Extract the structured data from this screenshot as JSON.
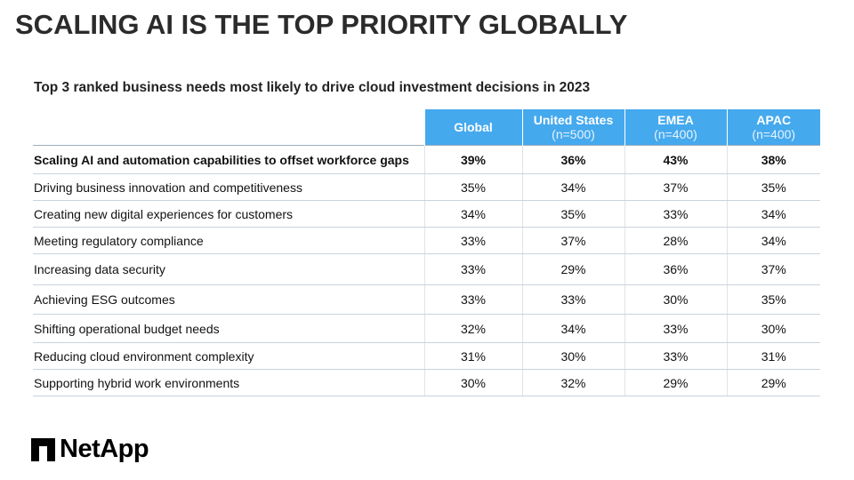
{
  "title": "SCALING AI IS THE TOP PRIORITY GLOBALLY",
  "subtitle": "Top 3 ranked business needs most likely to drive cloud investment decisions in 2023",
  "table": {
    "header_color": "#45a9ee",
    "columns": [
      {
        "name": "Global",
        "n": ""
      },
      {
        "name": "United States",
        "n": "(n=500)"
      },
      {
        "name": "EMEA",
        "n": "(n=400)"
      },
      {
        "name": "APAC",
        "n": "(n=400)"
      }
    ],
    "rows": [
      {
        "label": "Scaling AI and automation capabilities to offset workforce gaps",
        "values": [
          "39%",
          "36%",
          "43%",
          "38%"
        ]
      },
      {
        "label": "Driving business innovation and competitiveness",
        "values": [
          "35%",
          "34%",
          "37%",
          "35%"
        ]
      },
      {
        "label": "Creating new digital experiences for customers",
        "values": [
          "34%",
          "35%",
          "33%",
          "34%"
        ]
      },
      {
        "label": "Meeting regulatory compliance",
        "values": [
          "33%",
          "37%",
          "28%",
          "34%"
        ]
      },
      {
        "label": "Increasing data security",
        "values": [
          "33%",
          "29%",
          "36%",
          "37%"
        ]
      },
      {
        "label": "Achieving ESG outcomes",
        "values": [
          "33%",
          "33%",
          "30%",
          "35%"
        ]
      },
      {
        "label": "Shifting operational budget needs",
        "values": [
          "32%",
          "34%",
          "33%",
          "30%"
        ]
      },
      {
        "label": "Reducing cloud environment complexity",
        "values": [
          "31%",
          "30%",
          "33%",
          "31%"
        ]
      },
      {
        "label": "Supporting hybrid work environments",
        "values": [
          "30%",
          "32%",
          "29%",
          "29%"
        ]
      }
    ]
  },
  "logo": {
    "text": "NetApp",
    "icon": "netapp-logo-icon"
  }
}
